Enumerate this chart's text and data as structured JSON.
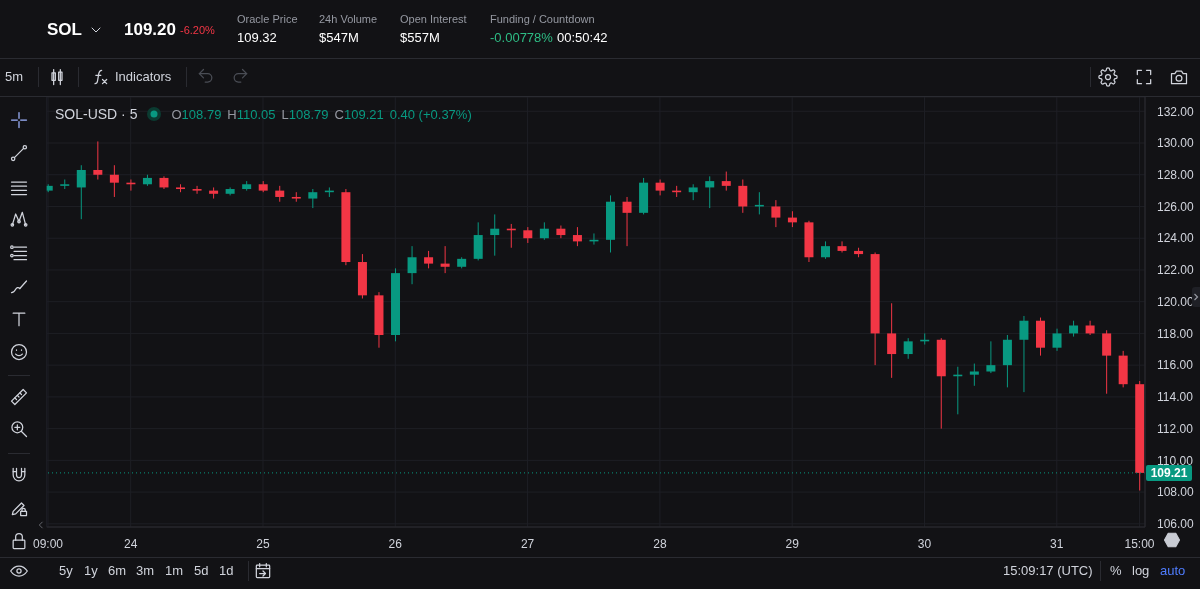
{
  "chart_data": {
    "type": "candlestick",
    "title": "SOL-USD · 5",
    "x": [
      "--01-23T09:00",
      "--01-23T12:00",
      "--01-23T15:00",
      "--01-23T18:00",
      "--01-23T21:00",
      "--01-24T00:00",
      "--01-24T03:00",
      "--01-24T06:00",
      "--01-24T09:00",
      "--01-24T12:00",
      "--01-24T15:00",
      "--01-24T18:00",
      "--01-24T21:00",
      "--01-25T00:00",
      "--01-25T03:00",
      "--01-25T06:00",
      "--01-25T09:00",
      "--01-25T12:00",
      "--01-25T15:00",
      "--01-25T18:00",
      "--01-25T21:00",
      "--01-26T00:00",
      "--01-26T03:00",
      "--01-26T06:00",
      "--01-26T09:00",
      "--01-26T12:00",
      "--01-26T15:00",
      "--01-26T18:00",
      "--01-26T21:00",
      "--01-27T00:00",
      "--01-27T03:00",
      "--01-27T06:00",
      "--01-27T09:00",
      "--01-27T12:00",
      "--01-27T15:00",
      "--01-27T18:00",
      "--01-27T21:00",
      "--01-28T00:00",
      "--01-28T03:00",
      "--01-28T06:00",
      "--01-28T09:00",
      "--01-28T12:00",
      "--01-28T15:00",
      "--01-28T18:00",
      "--01-28T21:00",
      "--01-29T00:00",
      "--01-29T03:00",
      "--01-29T06:00",
      "--01-29T09:00",
      "--01-29T12:00",
      "--01-29T15:00",
      "--01-29T18:00",
      "--01-29T21:00",
      "--01-30T00:00",
      "--01-30T03:00",
      "--01-30T06:00",
      "--01-30T09:00",
      "--01-30T12:00",
      "--01-30T15:00",
      "--01-30T18:00",
      "--01-30T21:00",
      "--01-31T00:00",
      "--01-31T03:00",
      "--01-31T06:00",
      "--01-31T09:00",
      "--01-31T12:00",
      "--01-31T15:00"
    ],
    "ohlc": [
      [
        127.0,
        127.4,
        126.9,
        127.3
      ],
      [
        127.3,
        127.7,
        127.1,
        127.4
      ],
      [
        127.2,
        128.6,
        125.2,
        128.3
      ],
      [
        128.3,
        130.1,
        127.7,
        128.0
      ],
      [
        128.0,
        128.6,
        126.6,
        127.5
      ],
      [
        127.5,
        127.7,
        127.0,
        127.4
      ],
      [
        127.4,
        128.0,
        127.3,
        127.8
      ],
      [
        127.8,
        127.9,
        127.1,
        127.2
      ],
      [
        127.2,
        127.4,
        126.9,
        127.1
      ],
      [
        127.1,
        127.3,
        126.8,
        127.0
      ],
      [
        127.0,
        127.2,
        126.5,
        126.8
      ],
      [
        126.8,
        127.2,
        126.7,
        127.1
      ],
      [
        127.1,
        127.6,
        127.0,
        127.4
      ],
      [
        127.4,
        127.6,
        126.9,
        127.0
      ],
      [
        127.0,
        127.3,
        126.3,
        126.6
      ],
      [
        126.6,
        126.9,
        126.3,
        126.5
      ],
      [
        126.5,
        127.1,
        125.9,
        126.9
      ],
      [
        126.9,
        127.2,
        126.6,
        127.0
      ],
      [
        126.9,
        127.1,
        122.3,
        122.5
      ],
      [
        122.5,
        123.0,
        120.2,
        120.4
      ],
      [
        120.4,
        120.6,
        117.1,
        117.9
      ],
      [
        117.9,
        122.1,
        117.5,
        121.8
      ],
      [
        121.8,
        123.5,
        121.1,
        122.8
      ],
      [
        122.8,
        123.2,
        122.1,
        122.4
      ],
      [
        122.4,
        123.5,
        121.8,
        122.2
      ],
      [
        122.2,
        122.8,
        122.1,
        122.7
      ],
      [
        122.7,
        125.0,
        122.6,
        124.2
      ],
      [
        124.2,
        125.5,
        122.9,
        124.6
      ],
      [
        124.6,
        124.9,
        123.4,
        124.5
      ],
      [
        124.5,
        124.7,
        123.7,
        124.0
      ],
      [
        124.0,
        125.0,
        123.9,
        124.6
      ],
      [
        124.6,
        124.8,
        124.0,
        124.2
      ],
      [
        124.2,
        124.7,
        123.5,
        123.8
      ],
      [
        123.8,
        124.3,
        123.6,
        123.9
      ],
      [
        123.9,
        126.7,
        123.1,
        126.3
      ],
      [
        126.3,
        126.6,
        123.5,
        125.6
      ],
      [
        125.6,
        127.8,
        125.5,
        127.5
      ],
      [
        127.5,
        127.7,
        126.7,
        127.0
      ],
      [
        127.0,
        127.3,
        126.6,
        126.9
      ],
      [
        126.9,
        127.4,
        126.4,
        127.2
      ],
      [
        127.2,
        127.9,
        125.9,
        127.6
      ],
      [
        127.6,
        128.2,
        127.0,
        127.3
      ],
      [
        127.3,
        127.7,
        125.6,
        126.0
      ],
      [
        126.0,
        126.9,
        125.5,
        126.1
      ],
      [
        126.0,
        126.4,
        124.7,
        125.3
      ],
      [
        125.3,
        125.7,
        124.7,
        125.0
      ],
      [
        125.0,
        125.1,
        122.5,
        122.8
      ],
      [
        122.8,
        123.8,
        122.7,
        123.5
      ],
      [
        123.5,
        123.8,
        123.1,
        123.2
      ],
      [
        123.2,
        123.4,
        122.8,
        123.0
      ],
      [
        123.0,
        123.1,
        116.0,
        118.0
      ],
      [
        118.0,
        119.9,
        115.2,
        116.7
      ],
      [
        116.7,
        117.7,
        116.4,
        117.5
      ],
      [
        117.5,
        118.0,
        117.3,
        117.6
      ],
      [
        117.6,
        117.7,
        112.0,
        115.3
      ],
      [
        115.3,
        115.9,
        112.9,
        115.4
      ],
      [
        115.4,
        116.1,
        114.7,
        115.6
      ],
      [
        115.6,
        117.5,
        115.5,
        116.0
      ],
      [
        116.0,
        117.9,
        114.6,
        117.6
      ],
      [
        117.6,
        119.1,
        114.3,
        118.8
      ],
      [
        118.8,
        119.0,
        116.6,
        117.1
      ],
      [
        117.1,
        118.3,
        116.9,
        118.0
      ],
      [
        118.0,
        118.8,
        117.8,
        118.5
      ],
      [
        118.5,
        118.8,
        117.9,
        118.0
      ],
      [
        118.0,
        118.2,
        114.2,
        116.6
      ],
      [
        116.6,
        116.9,
        114.6,
        114.8
      ],
      [
        114.8,
        115.0,
        108.1,
        109.21
      ]
    ],
    "colors": [
      "#089981",
      "#089981",
      "#089981",
      "#f23645",
      "#f23645",
      "#f23645",
      "#089981",
      "#f23645",
      "#f23645",
      "#f23645",
      "#f23645",
      "#089981",
      "#089981",
      "#f23645",
      "#f23645",
      "#f23645",
      "#089981",
      "#089981",
      "#f23645",
      "#f23645",
      "#f23645",
      "#089981",
      "#089981",
      "#f23645",
      "#f23645",
      "#089981",
      "#089981",
      "#089981",
      "#f23645",
      "#f23645",
      "#089981",
      "#f23645",
      "#f23645",
      "#089981",
      "#089981",
      "#f23645",
      "#089981",
      "#f23645",
      "#f23645",
      "#089981",
      "#089981",
      "#f23645",
      "#f23645",
      "#089981",
      "#f23645",
      "#f23645",
      "#f23645",
      "#089981",
      "#f23645",
      "#f23645",
      "#f23645",
      "#f23645",
      "#089981",
      "#089981",
      "#f23645",
      "#089981",
      "#089981",
      "#089981",
      "#089981",
      "#089981",
      "#f23645",
      "#089981",
      "#089981",
      "#f23645",
      "#f23645",
      "#f23645",
      "#f23645"
    ],
    "xlim": [
      "--01-23T08:46",
      "--01-31T16:00"
    ],
    "xticks": [
      {
        "value": "--01-23T09:00",
        "label": "09:00"
      },
      {
        "value": "--01-24",
        "label": "24"
      },
      {
        "value": "--01-25",
        "label": "25"
      },
      {
        "value": "--01-26",
        "label": "26"
      },
      {
        "value": "--01-27",
        "label": "27"
      },
      {
        "value": "--01-28",
        "label": "28"
      },
      {
        "value": "--01-29",
        "label": "29"
      },
      {
        "value": "--01-30",
        "label": "30"
      },
      {
        "value": "--01-31",
        "label": "31"
      },
      {
        "value": "--01-31T15:00",
        "label": "15:00"
      }
    ],
    "ylim": [
      105.8,
      132.9
    ],
    "yticks": [
      {
        "value": 106,
        "label": "106.00"
      },
      {
        "value": 108,
        "label": "108.00"
      },
      {
        "value": 110,
        "label": "110.00"
      },
      {
        "value": 112,
        "label": "112.00"
      },
      {
        "value": 114,
        "label": "114.00"
      },
      {
        "value": 116,
        "label": "116.00"
      },
      {
        "value": 118,
        "label": "118.00"
      },
      {
        "value": 120,
        "label": "120.00"
      },
      {
        "value": 122,
        "label": "122.00"
      },
      {
        "value": 124,
        "label": "124.00"
      },
      {
        "value": 126,
        "label": "126.00"
      },
      {
        "value": 128,
        "label": "128.00"
      },
      {
        "value": 130,
        "label": "130.00"
      },
      {
        "value": 132,
        "label": "132.00"
      }
    ],
    "grid": true,
    "ref_lines": [
      {
        "axis": "y",
        "value": 109.21,
        "label": "109.21",
        "color": "#089981",
        "line_style": "dotted"
      }
    ],
    "annotations": [
      "SOL",
      "109.20",
      "-6.20%",
      "Oracle Price",
      "109.32",
      "24h Volume",
      "$547M",
      "Open Interest",
      "$557M",
      "Funding / Countdown",
      "-0.00778%",
      "00:50:42",
      "5m",
      "Indicators",
      "O108.79",
      "H110.05",
      "L108.79",
      "C109.21",
      "0.40 (+0.37%)",
      "5y",
      "1y",
      "6m",
      "3m",
      "1m",
      "5d",
      "1d",
      "15:09:17 (UTC)",
      "%",
      "log",
      "auto"
    ]
  }
}
